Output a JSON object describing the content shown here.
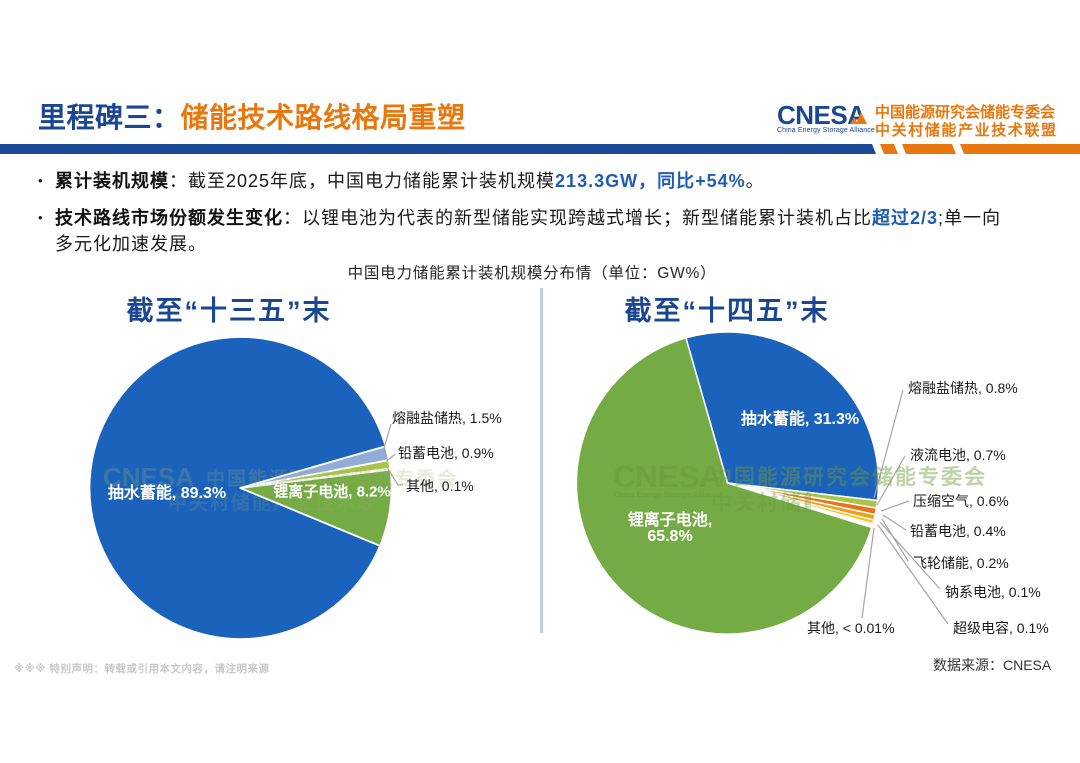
{
  "header": {
    "title_prefix": "里程碑三：",
    "title_main": "储能技术路线格局重塑",
    "logo": {
      "name": "CNESA",
      "tagline": "China Energy Storage Alliance",
      "org_line1": "中国能源研究会储能专委会",
      "org_line2": "中关村储能产业技术联盟"
    }
  },
  "bullets": {
    "bullet_char": "•",
    "b1": {
      "label": "累计装机规模",
      "colon": "：",
      "body": "截至2025年底，中国电力储能累计装机规模",
      "hl1": "213.3GW",
      "sep": "，",
      "hl2": "同比+54%",
      "end": "。"
    },
    "b2": {
      "label": "技术路线市场份额发生变化",
      "colon": "：",
      "body": "以锂电池为代表的新型储能实现跨越式增长；新型储能累计装机占比",
      "hl1": "超过2/3",
      "end": ";单一向",
      "cont": "多元化加速发展。"
    }
  },
  "chart_header": "中国电力储能累计装机规模分布情（单位：GW%）",
  "chart_data": [
    {
      "type": "pie",
      "title": "截至“十三五”末",
      "unit": "GW%",
      "slices": [
        {
          "label": "抽水蓄能",
          "value": 89.3,
          "color": "#1A62BC",
          "display": "抽水蓄能, 89.3%",
          "label_pos": "inside"
        },
        {
          "label": "熔融盐储热",
          "value": 1.5,
          "color": "#93ACD7",
          "display": "熔融盐储热, 1.5%",
          "label_pos": "callout"
        },
        {
          "label": "铅蓄电池",
          "value": 0.9,
          "color": "#A9C547",
          "display": "铅蓄电池, 0.9%",
          "label_pos": "callout"
        },
        {
          "label": "其他",
          "value": 0.1,
          "color": "#FFFFFF",
          "display": "其他, 0.1%",
          "label_pos": "callout"
        },
        {
          "label": "锂离子电池",
          "value": 8.2,
          "color": "#74AB44",
          "display": "锂离子电池, 8.2%",
          "label_pos": "inside"
        }
      ]
    },
    {
      "type": "pie",
      "title": "截至“十四五”末",
      "unit": "GW%",
      "slices": [
        {
          "label": "抽水蓄能",
          "value": 31.3,
          "color": "#1A62BC",
          "display": "抽水蓄能, 31.3%",
          "label_pos": "inside"
        },
        {
          "label": "熔融盐储热",
          "value": 0.8,
          "color": "#A9C547",
          "display": "熔融盐储热, 0.8%",
          "label_pos": "callout"
        },
        {
          "label": "液流电池",
          "value": 0.7,
          "color": "#E8731E",
          "display": "液流电池, 0.7%",
          "label_pos": "callout"
        },
        {
          "label": "压缩空气",
          "value": 0.6,
          "color": "#F49D1D",
          "display": "压缩空气, 0.6%",
          "label_pos": "callout"
        },
        {
          "label": "铅蓄电池",
          "value": 0.4,
          "color": "#FFC000",
          "display": "铅蓄电池, 0.4%",
          "label_pos": "callout"
        },
        {
          "label": "飞轮储能",
          "value": 0.2,
          "color": "#D8E1EF",
          "display": "飞轮储能, 0.2%",
          "label_pos": "callout"
        },
        {
          "label": "钠系电池",
          "value": 0.1,
          "color": "#C7D5E8",
          "display": "钠系电池, 0.1%",
          "label_pos": "callout"
        },
        {
          "label": "超级电容",
          "value": 0.1,
          "color": "#EDF1F7",
          "display": "超级电容, 0.1%",
          "label_pos": "callout"
        },
        {
          "label": "其他",
          "value": 0.005,
          "color": "#FFFFFF",
          "display": "其他, < 0.01%",
          "label_pos": "callout"
        },
        {
          "label": "锂离子电池",
          "value": 65.8,
          "color": "#74AB44",
          "display": "锂离子电池, 65.8%",
          "display_lines": [
            "锂离子电池,",
            "65.8%"
          ],
          "label_pos": "inside"
        }
      ]
    }
  ],
  "footer": {
    "disclaimer": "※※※ 特别声明：转载或引用本文内容，请注明来源",
    "source": "数据来源：CNESA"
  },
  "colors": {
    "title_blue": "#1B4693",
    "brand_orange": "#E8770F",
    "highlight_blue": "#1F5CB5",
    "bar_blue": "#1C4A96",
    "divider": "#B9CFE8",
    "leader": "#A6A6A6"
  }
}
